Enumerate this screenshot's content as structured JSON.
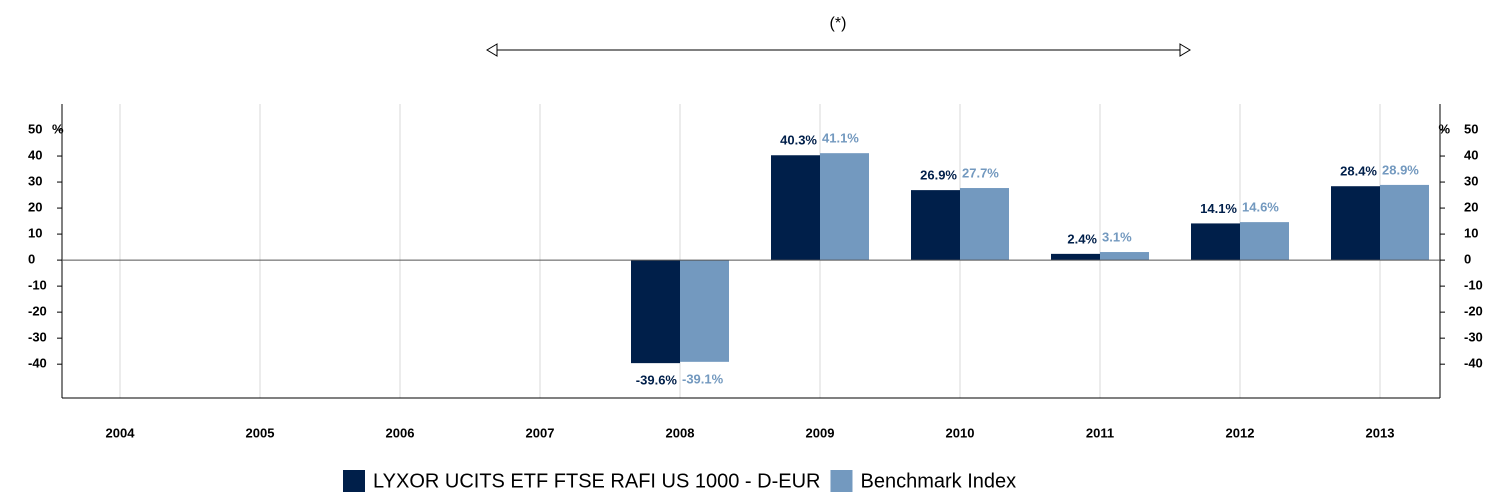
{
  "chart_data": {
    "type": "bar",
    "annotation": "(*)",
    "y_axis_label": "%",
    "categories": [
      "2004",
      "2005",
      "2006",
      "2007",
      "2008",
      "2009",
      "2010",
      "2011",
      "2012",
      "2013"
    ],
    "series": [
      {
        "name": "LYXOR UCITS ETF FTSE RAFI US 1000 - D-EUR",
        "color": "#001f4a",
        "values": [
          null,
          null,
          null,
          null,
          -39.6,
          40.3,
          26.9,
          2.4,
          14.1,
          28.4
        ],
        "value_labels": [
          null,
          null,
          null,
          null,
          "-39.6%",
          "40.3%",
          "26.9%",
          "2.4%",
          "14.1%",
          "28.4%"
        ]
      },
      {
        "name": "Benchmark Index",
        "color": "#7399bf",
        "values": [
          null,
          null,
          null,
          null,
          -39.1,
          41.1,
          27.7,
          3.1,
          14.6,
          28.9
        ],
        "value_labels": [
          null,
          null,
          null,
          null,
          "-39.1%",
          "41.1%",
          "27.7%",
          "3.1%",
          "14.6%",
          "28.9%"
        ]
      }
    ],
    "ylim": [
      -53,
      60
    ],
    "yticks": [
      -40,
      -30,
      -20,
      -10,
      0,
      10,
      20,
      30,
      40,
      50
    ],
    "grid": true
  }
}
